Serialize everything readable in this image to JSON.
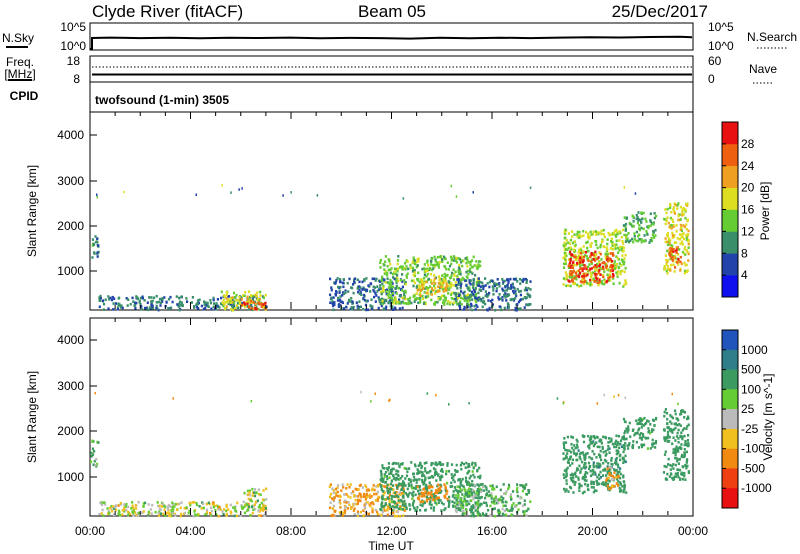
{
  "header": {
    "station": "Clyde River (fitACF)",
    "beam": "Beam 05",
    "date": "25/Dec/2017"
  },
  "sky_panel": {
    "left_label": "N.Sky",
    "left_ticks": [
      "10^5",
      "10^0"
    ],
    "right_ticks": [
      "10^5",
      "10^0"
    ],
    "right_label": "N.Search"
  },
  "freq_panel": {
    "left_label_1": "Freq.",
    "left_label_2": "[MHz]",
    "left_ticks": [
      "18",
      "8"
    ],
    "right_ticks": [
      "60",
      "0"
    ],
    "right_label": "Nave",
    "cpid_label": "CPID"
  },
  "cpid_text": "twofsound (1-min) 3505",
  "x_axis": {
    "ticks": [
      "00:00",
      "04:00",
      "08:00",
      "12:00",
      "16:00",
      "20:00",
      "00:00"
    ],
    "label": "Time UT"
  },
  "power_panel": {
    "ylabel": "Slant Range [km]",
    "yticks": [
      "4000",
      "3000",
      "2000",
      "1000"
    ],
    "colorbar_label": "Power [dB]",
    "colorbar_ticks": [
      "28",
      "24",
      "20",
      "16",
      "12",
      "8",
      "4"
    ],
    "colors": [
      "#1010ee",
      "#2244aa",
      "#3a8f6a",
      "#66cc33",
      "#dddd22",
      "#f0a020",
      "#ee6010",
      "#e81010"
    ]
  },
  "velocity_panel": {
    "ylabel": "Slant Range [km]",
    "yticks": [
      "4000",
      "3000",
      "2000",
      "1000"
    ],
    "colorbar_label": "Velocity [m s^-1]",
    "colorbar_ticks": [
      "1000",
      "500",
      "100",
      "25",
      "-25",
      "-100",
      "-500",
      "-1000"
    ],
    "colors": [
      "#2255bb",
      "#2e7f8a",
      "#3a9a60",
      "#66cc33",
      "#bbbbbb",
      "#f0c020",
      "#f08a10",
      "#ee4010",
      "#e81010"
    ]
  },
  "chart_data": {
    "type": "heatmap",
    "xlabel": "Time UT",
    "ylabel": "Slant Range [km]",
    "x_range_hours": [
      0,
      24
    ],
    "y_range_km": [
      180,
      4600
    ],
    "panels": [
      {
        "name": "Power",
        "units": "dB",
        "colorbar": [
          4,
          8,
          12,
          16,
          20,
          24,
          28
        ],
        "echo_regions": [
          {
            "t": [
              0.0,
              0.3
            ],
            "r": [
              1300,
              1900
            ],
            "value": 10
          },
          {
            "t": [
              0.3,
              7.0
            ],
            "r": [
              180,
              500
            ],
            "value": 9
          },
          {
            "t": [
              5.2,
              7.0
            ],
            "r": [
              180,
              600
            ],
            "value": 18
          },
          {
            "t": [
              6.0,
              7.0
            ],
            "r": [
              200,
              400
            ],
            "value": 28
          },
          {
            "t": [
              9.5,
              12.5
            ],
            "r": [
              180,
              900
            ],
            "value": 8
          },
          {
            "t": [
              11.5,
              15.5
            ],
            "r": [
              300,
              1400
            ],
            "value": 14
          },
          {
            "t": [
              13.0,
              14.2
            ],
            "r": [
              500,
              900
            ],
            "value": 20
          },
          {
            "t": [
              14.5,
              17.5
            ],
            "r": [
              180,
              900
            ],
            "value": 8
          },
          {
            "t": [
              18.8,
              21.3
            ],
            "r": [
              700,
              2000
            ],
            "value": 16
          },
          {
            "t": [
              19.0,
              20.8
            ],
            "r": [
              800,
              1500
            ],
            "value": 28
          },
          {
            "t": [
              21.2,
              22.5
            ],
            "r": [
              1700,
              2400
            ],
            "value": 12
          },
          {
            "t": [
              22.8,
              23.8
            ],
            "r": [
              1000,
              2600
            ],
            "value": 18
          },
          {
            "t": [
              23.0,
              23.5
            ],
            "r": [
              1100,
              1600
            ],
            "value": 26
          }
        ]
      },
      {
        "name": "Velocity",
        "units": "m s^-1",
        "colorbar": [
          1000,
          500,
          100,
          25,
          -25,
          -100,
          -500,
          -1000
        ],
        "echo_regions": [
          {
            "t": [
              0.0,
              0.3
            ],
            "r": [
              1300,
              1900
            ],
            "value": 100
          },
          {
            "t": [
              0.3,
              7.0
            ],
            "r": [
              180,
              500
            ],
            "value": 0
          },
          {
            "t": [
              6.0,
              7.0
            ],
            "r": [
              300,
              800
            ],
            "value": 0
          },
          {
            "t": [
              9.5,
              12.5
            ],
            "r": [
              180,
              900
            ],
            "value": -100
          },
          {
            "t": [
              11.5,
              15.5
            ],
            "r": [
              300,
              1400
            ],
            "value": 200
          },
          {
            "t": [
              13.0,
              14.2
            ],
            "r": [
              500,
              900
            ],
            "value": -300
          },
          {
            "t": [
              14.5,
              17.5
            ],
            "r": [
              180,
              900
            ],
            "value": 100
          },
          {
            "t": [
              18.8,
              21.3
            ],
            "r": [
              700,
              2000
            ],
            "value": 400
          },
          {
            "t": [
              20.5,
              21.0
            ],
            "r": [
              800,
              1300
            ],
            "value": -100
          },
          {
            "t": [
              21.2,
              22.5
            ],
            "r": [
              1700,
              2400
            ],
            "value": 200
          },
          {
            "t": [
              22.8,
              23.8
            ],
            "r": [
              1000,
              2600
            ],
            "value": 300
          }
        ]
      }
    ]
  }
}
